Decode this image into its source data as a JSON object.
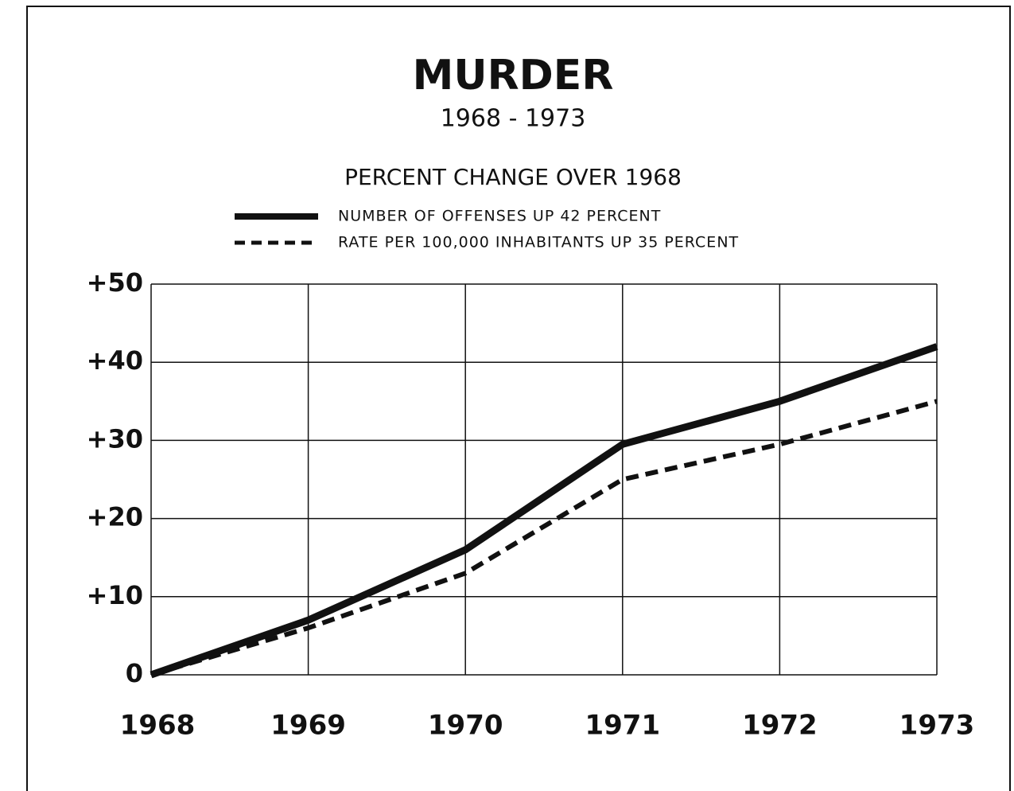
{
  "chart_data": {
    "type": "line",
    "title": "MURDER",
    "subtitle": "1968 - 1973",
    "y_axis_title": "PERCENT CHANGE OVER 1968",
    "categories": [
      "1968",
      "1969",
      "1970",
      "1971",
      "1972",
      "1973"
    ],
    "series": [
      {
        "name": "NUMBER OF OFFENSES UP 42 PERCENT",
        "color": "#111111",
        "style": "solid",
        "values": [
          0,
          7,
          16,
          29.5,
          35,
          42
        ]
      },
      {
        "name": "RATE PER 100,000 INHABITANTS UP 35 PERCENT",
        "color": "#111111",
        "style": "dashed",
        "values": [
          0,
          6,
          13,
          25,
          29.5,
          35
        ]
      }
    ],
    "ylim": [
      0,
      50
    ],
    "yticks": [
      0,
      {
        "value": 10,
        "label": "+10"
      },
      {
        "value": 20,
        "label": "+20"
      },
      {
        "value": 30,
        "label": "+30"
      },
      {
        "value": 40,
        "label": "+40"
      },
      {
        "value": 50,
        "label": "+50"
      }
    ],
    "grid": true
  }
}
